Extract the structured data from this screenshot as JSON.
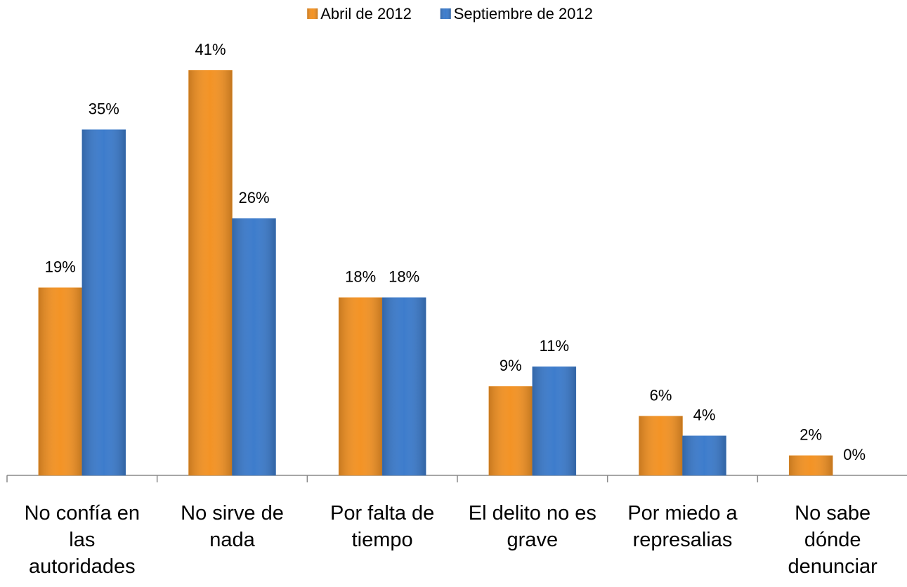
{
  "chart_data": {
    "type": "bar",
    "categories": [
      "No confía en las autoridades",
      "No sirve de nada",
      "Por falta de tiempo",
      "El delito no es grave",
      "Por miedo a represalias",
      "No sabe dónde denunciar"
    ],
    "series": [
      {
        "name": "Abril de 2012",
        "color": "#f39325",
        "values": [
          19,
          41,
          18,
          9,
          6,
          2
        ],
        "value_labels": [
          "19%",
          "41%",
          "18%",
          "9%",
          "6%",
          "2%"
        ]
      },
      {
        "name": "Septiembre de 2012",
        "color": "#3d7ccc",
        "values": [
          35,
          26,
          18,
          11,
          4,
          0
        ],
        "value_labels": [
          "35%",
          "26%",
          "18%",
          "11%",
          "4%",
          "0%"
        ]
      }
    ],
    "ylim": [
      0,
      45
    ],
    "legend": "top"
  }
}
